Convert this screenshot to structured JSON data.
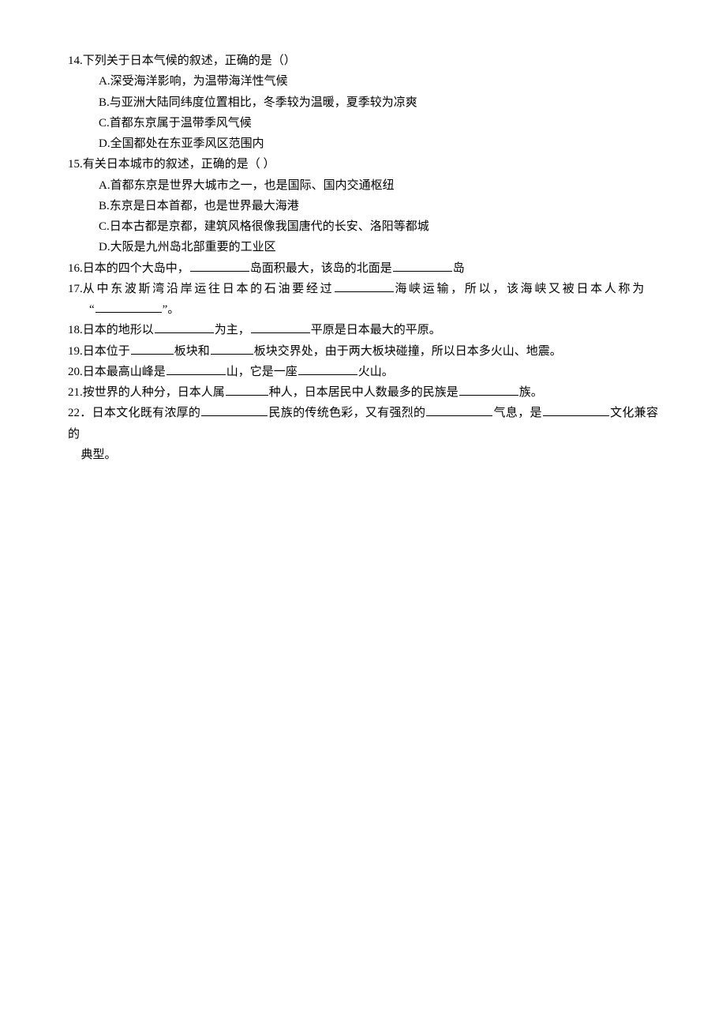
{
  "q14": {
    "num": "14.",
    "stem": "下列关于日本气候的叙述，正确的是（）",
    "opts": {
      "a": "A.深受海洋影响，为温带海洋性气候",
      "b": "B.与亚洲大陆同纬度位置相比，冬季较为温暖，夏季较为凉爽",
      "c": "C.首都东京属于温带季风气候",
      "d": "D.全国都处在东亚季风区范围内"
    }
  },
  "q15": {
    "num": "15.",
    "stem": "有关日本城市的叙述，正确的是（ ）",
    "opts": {
      "a": "A.首都东京是世界大城市之一，也是国际、国内交通枢纽",
      "b": "B.东京是日本首都，也是世界最大海港",
      "c": "C.日本古都是京都，建筑风格很像我国唐代的长安、洛阳等都城",
      "d": "D.大阪是九州岛北部重要的工业区"
    }
  },
  "q16": {
    "num": "16.",
    "t1": "日本的四个大岛中，",
    "t2": "岛面积最大，该岛的北面是",
    "t3": "岛"
  },
  "q17": {
    "num": "17.",
    "t1": "从中东波斯湾沿岸运往日本的石油要经过",
    "t2": "海峡运输，所以，该海峡又被日本人称为",
    "t3a": "“",
    "t3b": "”。"
  },
  "q18": {
    "num": "18.",
    "t1": "日本的地形以",
    "t2": "为主，",
    "t3": "平原是日本最大的平原。"
  },
  "q19": {
    "num": "19.",
    "t1": "日本位于",
    "t2": "板块和",
    "t3": "板块交界处，由于两大板块碰撞，所以日本多火山、地震。"
  },
  "q20": {
    "num": "20.",
    "t1": "日本最高山峰是",
    "t2": "山，它是一座",
    "t3": "火山。"
  },
  "q21": {
    "num": "21.",
    "t1": "按世界的人种分，日本人属",
    "t2": "种人，日本居民中人数最多的民族是",
    "t3": "族。"
  },
  "q22": {
    "num": "22．",
    "t1": "日本文化既有浓厚的",
    "t2": "民族的传统色彩，又有强烈的",
    "t3": "气息，是",
    "t4": "文化兼容的",
    "t5": "典型。"
  }
}
